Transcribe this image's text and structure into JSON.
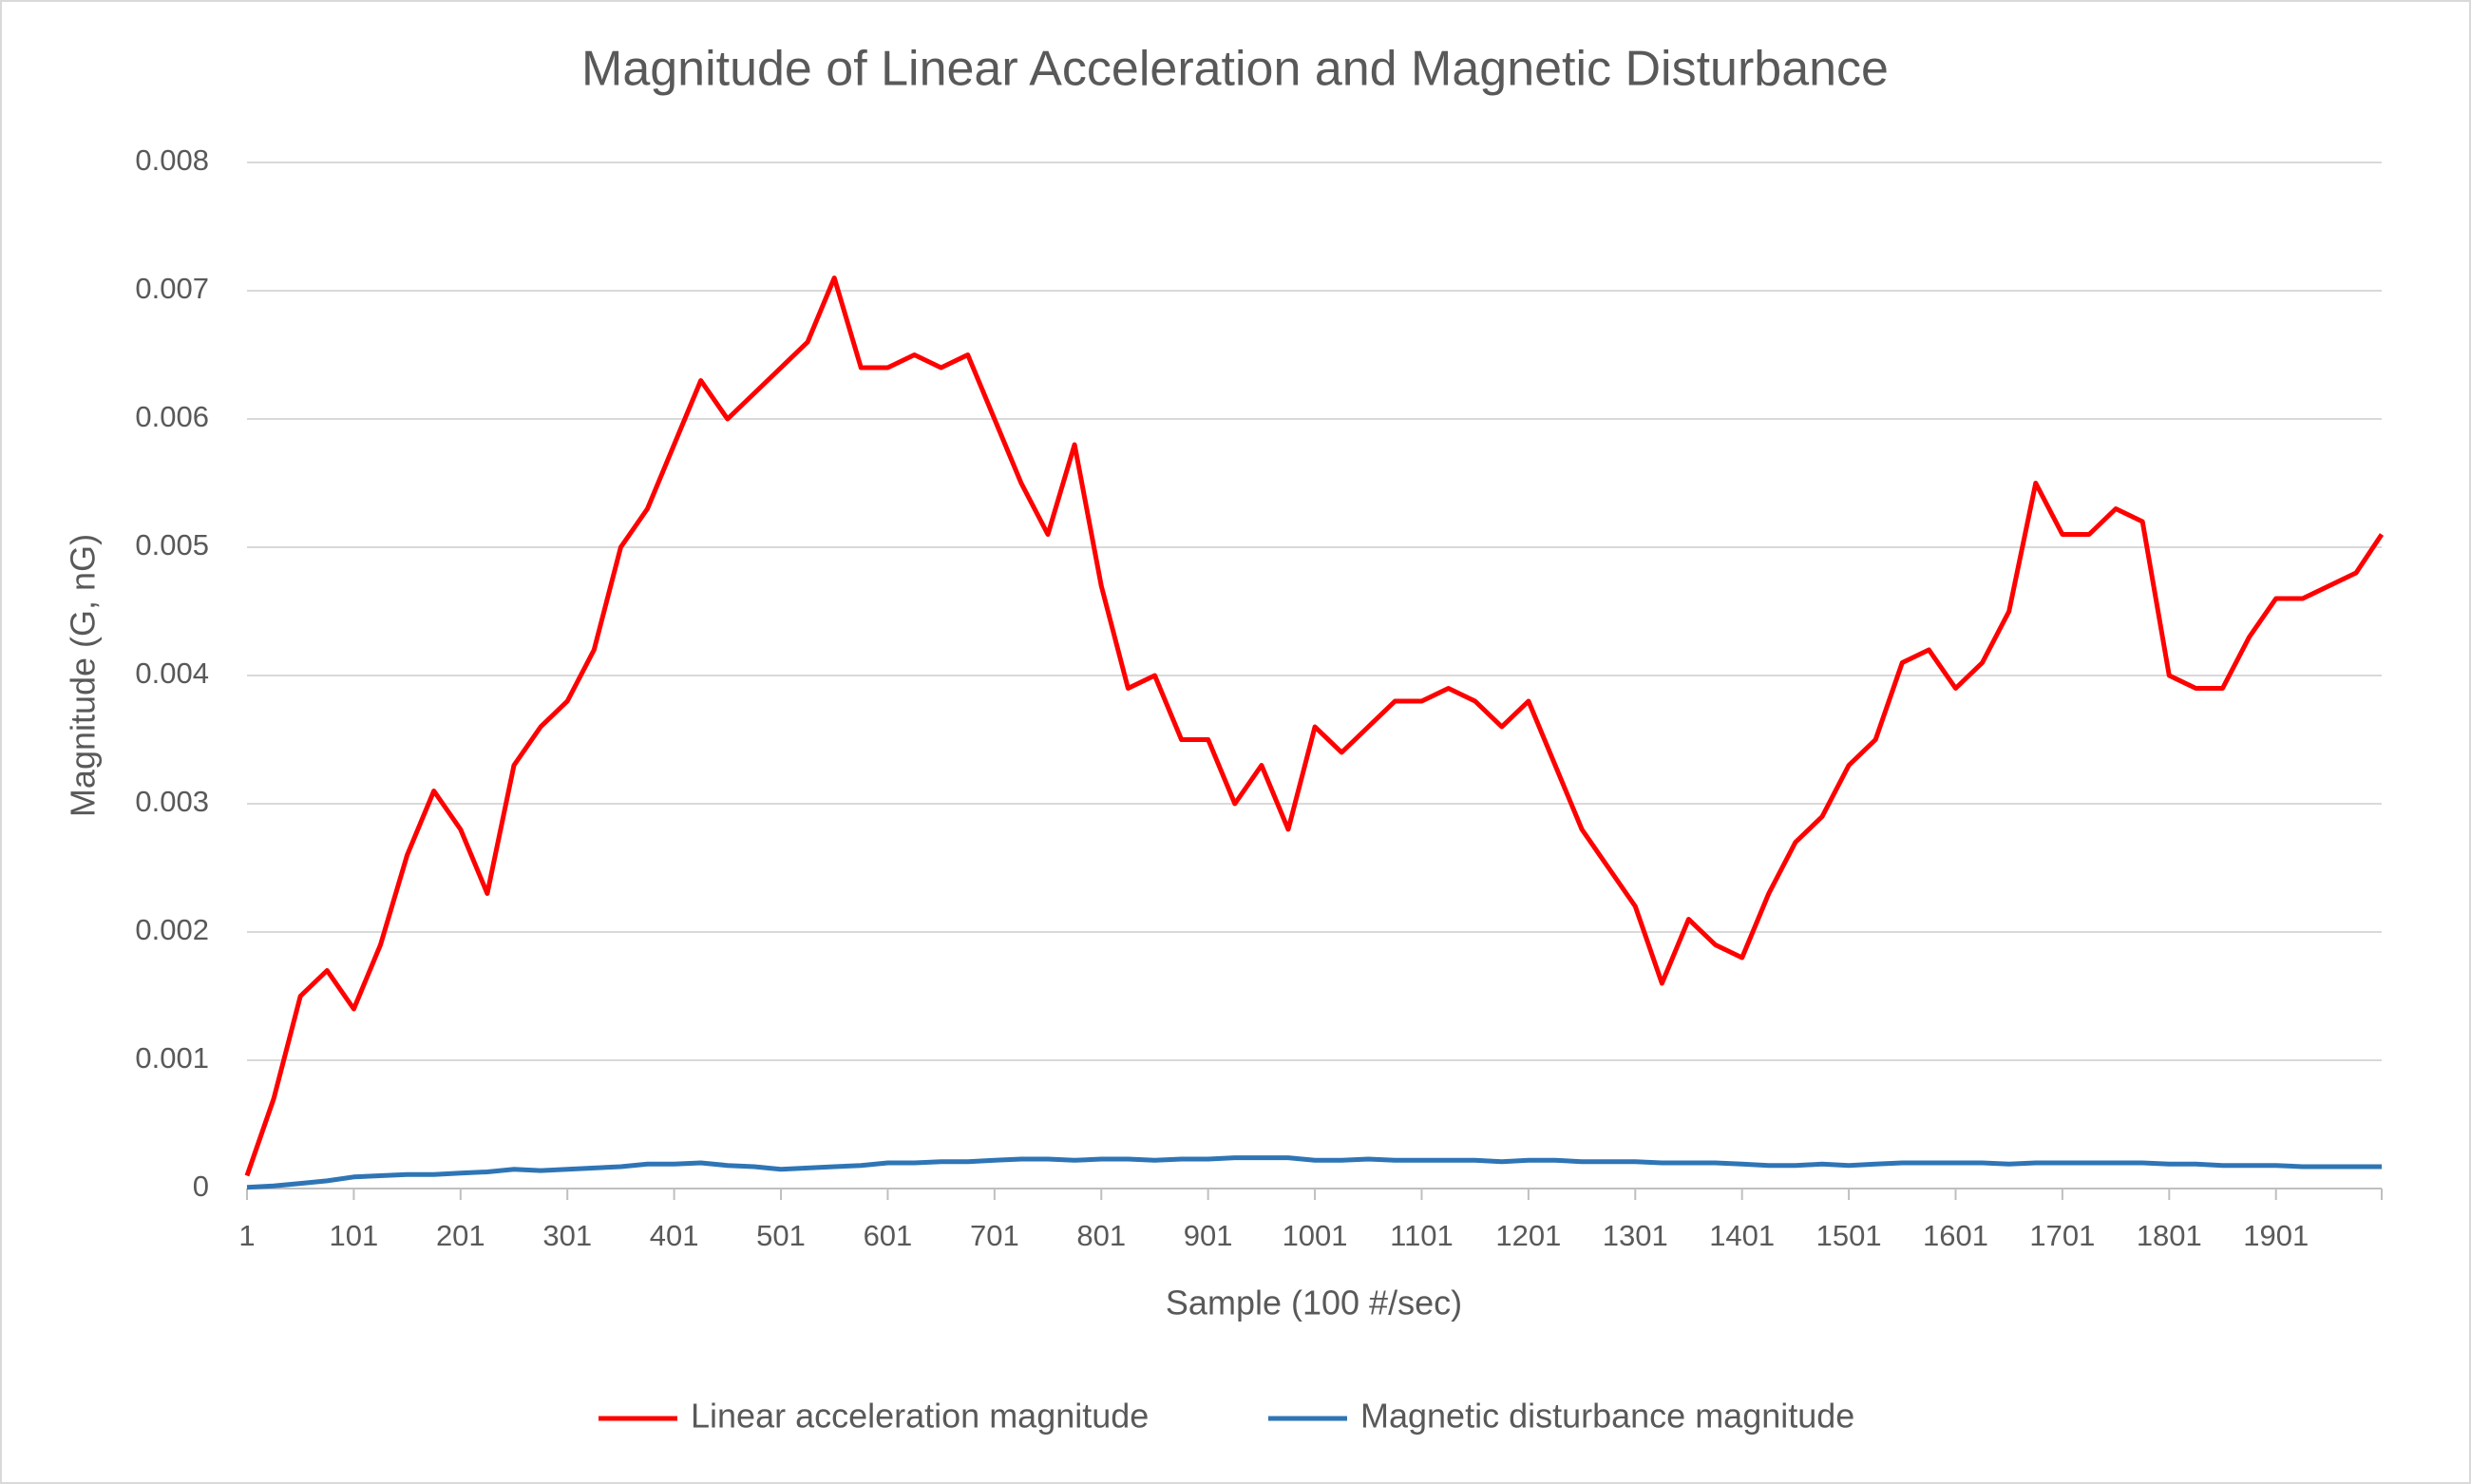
{
  "chart_data": {
    "type": "line",
    "title": "Magnitude of Linear Acceleration and Magnetic Disturbance",
    "x_label": "Sample (100 #/sec)",
    "y_label": "Magnitude (G, nG)",
    "x": [
      1,
      26,
      51,
      76,
      101,
      126,
      151,
      176,
      201,
      226,
      251,
      276,
      301,
      326,
      351,
      376,
      401,
      426,
      451,
      476,
      501,
      526,
      551,
      576,
      601,
      626,
      651,
      676,
      701,
      726,
      751,
      776,
      801,
      826,
      851,
      876,
      901,
      926,
      951,
      976,
      1001,
      1026,
      1051,
      1076,
      1101,
      1126,
      1151,
      1176,
      1201,
      1226,
      1251,
      1276,
      1301,
      1326,
      1351,
      1376,
      1401,
      1426,
      1451,
      1476,
      1501,
      1526,
      1551,
      1576,
      1601,
      1626,
      1651,
      1676,
      1701,
      1726,
      1751,
      1776,
      1801,
      1826,
      1851,
      1876,
      1901,
      1926,
      1951,
      1976,
      2000
    ],
    "series": [
      {
        "name": "Linear acceleration magnitude",
        "color": "#ff0000",
        "values": [
          0.0001,
          0.0007,
          0.0015,
          0.0017,
          0.0014,
          0.0019,
          0.0026,
          0.0031,
          0.0028,
          0.0023,
          0.0033,
          0.0036,
          0.0038,
          0.0042,
          0.005,
          0.0053,
          0.0058,
          0.0063,
          0.006,
          0.0062,
          0.0064,
          0.0066,
          0.0071,
          0.0064,
          0.0064,
          0.0065,
          0.0064,
          0.0065,
          0.006,
          0.0055,
          0.0051,
          0.0058,
          0.0047,
          0.0039,
          0.004,
          0.0035,
          0.0035,
          0.003,
          0.0033,
          0.0028,
          0.0036,
          0.0034,
          0.0036,
          0.0038,
          0.0038,
          0.0039,
          0.0038,
          0.0036,
          0.0038,
          0.0033,
          0.0028,
          0.0025,
          0.0022,
          0.0016,
          0.0021,
          0.0019,
          0.0018,
          0.0023,
          0.0027,
          0.0029,
          0.0033,
          0.0035,
          0.0041,
          0.0042,
          0.0039,
          0.0041,
          0.0045,
          0.0055,
          0.0051,
          0.0051,
          0.0053,
          0.0052,
          0.004,
          0.0039,
          0.0039,
          0.0043,
          0.0046,
          0.0046,
          0.0047,
          0.0048,
          0.0051
        ]
      },
      {
        "name": "Magnetic disturbance magnitude",
        "color": "#2e75b6",
        "values": [
          1e-05,
          2e-05,
          4e-05,
          6e-05,
          9e-05,
          0.0001,
          0.00011,
          0.00011,
          0.00012,
          0.00013,
          0.00015,
          0.00014,
          0.00015,
          0.00016,
          0.00017,
          0.00019,
          0.00019,
          0.0002,
          0.00018,
          0.00017,
          0.00015,
          0.00016,
          0.00017,
          0.00018,
          0.0002,
          0.0002,
          0.00021,
          0.00021,
          0.00022,
          0.00023,
          0.00023,
          0.00022,
          0.00023,
          0.00023,
          0.00022,
          0.00023,
          0.00023,
          0.00024,
          0.00024,
          0.00024,
          0.00022,
          0.00022,
          0.00023,
          0.00022,
          0.00022,
          0.00022,
          0.00022,
          0.00021,
          0.00022,
          0.00022,
          0.00021,
          0.00021,
          0.00021,
          0.0002,
          0.0002,
          0.0002,
          0.00019,
          0.00018,
          0.00018,
          0.00019,
          0.00018,
          0.00019,
          0.0002,
          0.0002,
          0.0002,
          0.0002,
          0.00019,
          0.0002,
          0.0002,
          0.0002,
          0.0002,
          0.0002,
          0.00019,
          0.00019,
          0.00018,
          0.00018,
          0.00018,
          0.00017,
          0.00017,
          0.00017,
          0.00017
        ]
      }
    ],
    "xlim": [
      1,
      2000
    ],
    "xticks": [
      1,
      101,
      201,
      301,
      401,
      501,
      601,
      701,
      801,
      901,
      1001,
      1101,
      1201,
      1301,
      1401,
      1501,
      1601,
      1701,
      1801,
      1901
    ],
    "ylim": [
      0,
      0.008
    ],
    "yticks": [
      0,
      0.001,
      0.002,
      0.003,
      0.004,
      0.005,
      0.006,
      0.007,
      0.008
    ],
    "grid": true,
    "legend": "bottom"
  }
}
